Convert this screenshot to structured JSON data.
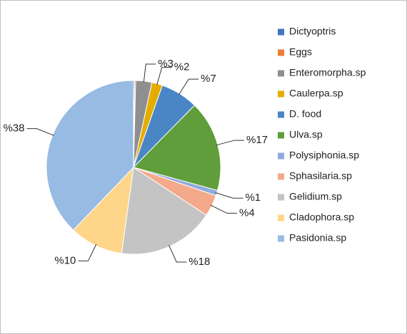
{
  "chart_data": {
    "type": "pie",
    "categories": [
      "Dictyoptris",
      " Eggs",
      "Enteromorpha.sp",
      "Caulerpa.sp",
      "D. food",
      "Ulva.sp",
      "Polysiphonia.sp",
      "Sphasilaria.sp",
      "Gelidium.sp",
      "Cladophora.sp",
      "Pasidonia.sp"
    ],
    "values": [
      0.2,
      0.2,
      3,
      2,
      7,
      17,
      1,
      4,
      18,
      10,
      38
    ],
    "value_labels": [
      null,
      null,
      "%3",
      "%2",
      "%7",
      "%17",
      "%1",
      "%4",
      "%18",
      "%10",
      "%38"
    ],
    "colors": [
      "#4472c4",
      "#ed7d31",
      "#8f8f8f",
      "#e5ac00",
      "#4a86c5",
      "#5f9e3a",
      "#8faadc",
      "#f4a98a",
      "#c4c4c4",
      "#ffd58a",
      "#97bbe3"
    ],
    "legend": "right"
  }
}
